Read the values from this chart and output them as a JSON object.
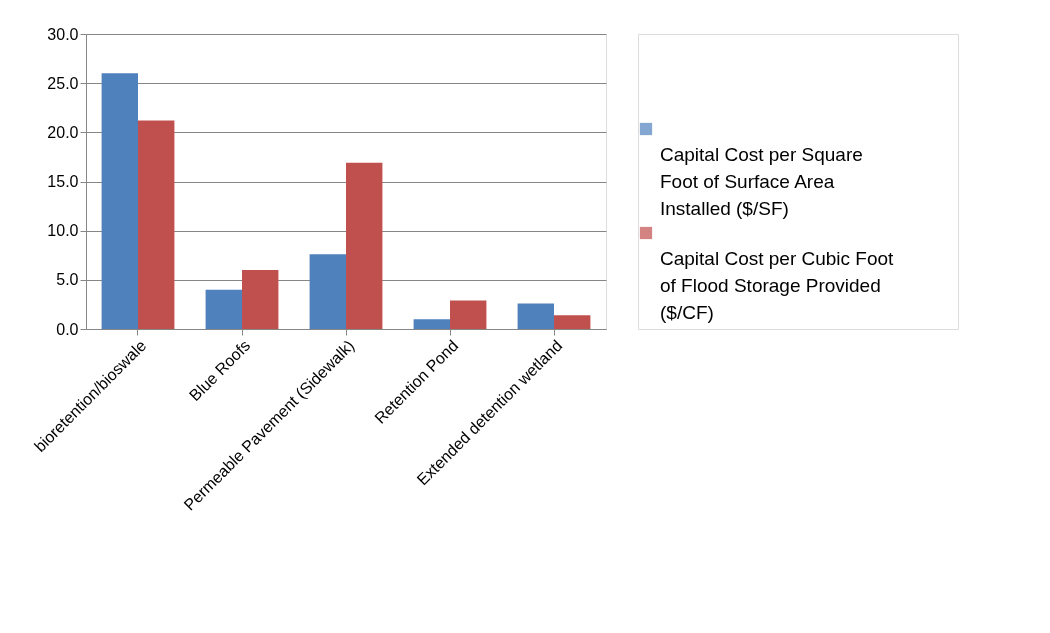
{
  "chart_data": {
    "type": "bar",
    "categories": [
      "bioretention/bioswale",
      "Blue Roofs",
      "Permeable Pavement (Sidewalk)",
      "Retention Pond",
      "Extended detention wetland"
    ],
    "series": [
      {
        "name": "Capital Cost per Square Foot of Surface Area Installed ($/SF)",
        "color": "#4f81bd",
        "values": [
          26.0,
          4.0,
          7.6,
          1.0,
          2.6
        ]
      },
      {
        "name": "Capital Cost per Cubic Foot of Flood Storage Provided ($/CF)",
        "color": "#c0504d",
        "values": [
          21.2,
          6.0,
          16.9,
          2.9,
          1.4
        ]
      }
    ],
    "ylim": [
      0,
      30
    ],
    "yticks": [
      {
        "value": 0,
        "label": "0.0"
      },
      {
        "value": 5,
        "label": "5.0"
      },
      {
        "value": 10,
        "label": "10.0"
      },
      {
        "value": 15,
        "label": "15.0"
      },
      {
        "value": 20,
        "label": "20.0"
      },
      {
        "value": 25,
        "label": "25.0"
      },
      {
        "value": 30,
        "label": "30.0"
      }
    ],
    "grid": "y",
    "legend": "right"
  }
}
